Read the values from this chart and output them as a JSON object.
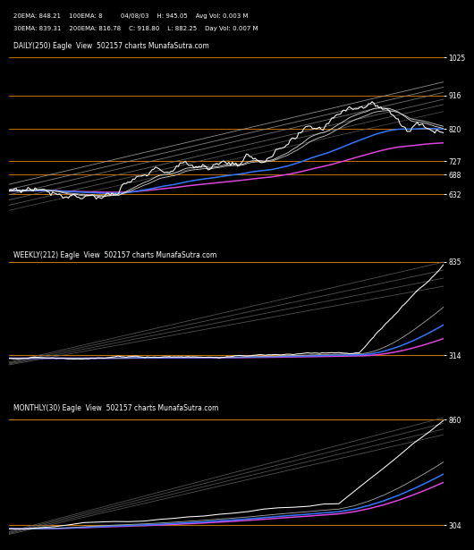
{
  "bg_color": "#000000",
  "text_color": "#ffffff",
  "orange_color": "#cc7700",
  "header_line1": "20EMA: 848.21    100EMA: 8         04/08/03    H: 945.05    Avg Vol: 0.003 M",
  "header_line2": "30EMA: 839.31    200EMA: 816.78    C: 918.80    L: 882.25    Day Vol: 0.007 M",
  "panel1": {
    "label": "DAILY(250) Eagle  View  502157 charts MunafaSutra.com",
    "hlines": [
      1025,
      916,
      820,
      727,
      688,
      632
    ],
    "ymin": 560,
    "ymax": 1075,
    "n_points": 250
  },
  "panel2": {
    "label": "WEEKLY(212) Eagle  View  502157 charts MunafaSutra.com",
    "hlines": [
      835,
      314
    ],
    "ymin": 250,
    "ymax": 900,
    "n_points": 212
  },
  "panel3": {
    "label": "MONTHLY(30) Eagle  View  502157 charts MunafaSutra.com",
    "hlines": [
      860,
      304
    ],
    "ymin": 220,
    "ymax": 950,
    "n_points": 30
  }
}
